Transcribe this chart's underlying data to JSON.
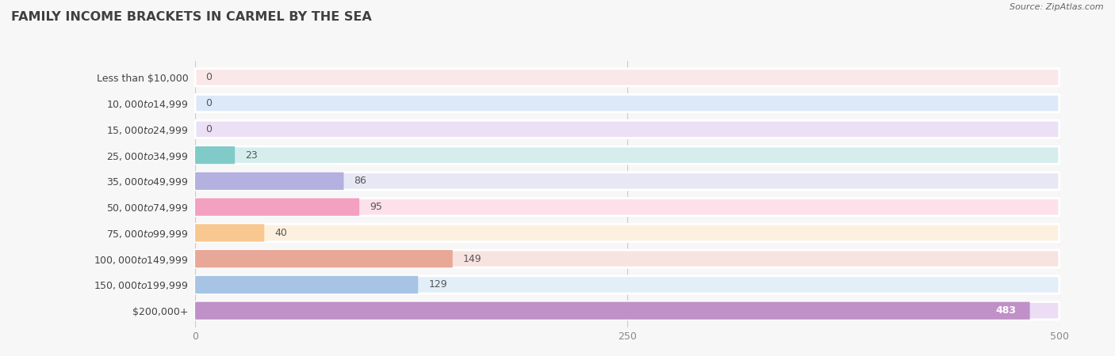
{
  "title": "Family Income Brackets in Carmel By The Sea",
  "title_display": "FAMILY INCOME BRACKETS IN CARMEL BY THE SEA",
  "source_text": "Source: ZipAtlas.com",
  "categories": [
    "Less than $10,000",
    "$10,000 to $14,999",
    "$15,000 to $24,999",
    "$25,000 to $34,999",
    "$35,000 to $49,999",
    "$50,000 to $74,999",
    "$75,000 to $99,999",
    "$100,000 to $149,999",
    "$150,000 to $199,999",
    "$200,000+"
  ],
  "values": [
    0,
    0,
    0,
    23,
    86,
    95,
    40,
    149,
    129,
    483
  ],
  "bar_colors": [
    "#f2a0a0",
    "#a0b8e8",
    "#c8a8e0",
    "#80cbc8",
    "#b4b0e0",
    "#f4a0c0",
    "#f8c890",
    "#e8a898",
    "#a8c4e4",
    "#c090c8"
  ],
  "bg_colors": [
    "#fae8e8",
    "#dde8f8",
    "#ece0f5",
    "#d5eeed",
    "#e8e8f5",
    "#fce0ea",
    "#fdf0df",
    "#f7e4e0",
    "#e2eef8",
    "#ecddf5"
  ],
  "xlim": [
    0,
    500
  ],
  "xticks": [
    0,
    250,
    500
  ],
  "title_fontsize": 11.5,
  "label_fontsize": 9,
  "value_fontsize": 9,
  "background_color": "#f7f7f7"
}
